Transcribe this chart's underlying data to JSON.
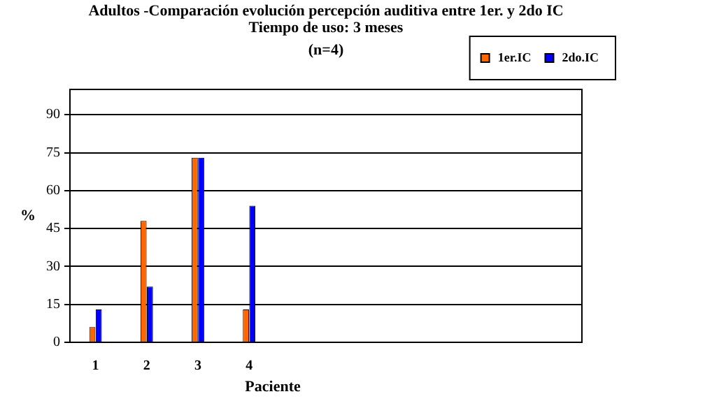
{
  "chart_data": {
    "type": "bar",
    "title": "Adultos -Comparación evolución percepción auditiva entre 1er. y 2do IC",
    "subtitle": "Tiempo de uso: 3 meses",
    "annotations": [
      "(n=4)"
    ],
    "xlabel": "Paciente",
    "ylabel": "%",
    "categories": [
      "1",
      "2",
      "3",
      "4",
      null,
      null,
      null,
      null,
      null,
      null
    ],
    "series": [
      {
        "name": "1er.IC",
        "color": "#ff6600",
        "values": [
          6,
          48,
          73,
          13,
          null,
          null,
          null,
          null,
          null,
          null
        ]
      },
      {
        "name": "2do.IC",
        "color": "#0000ff",
        "values": [
          13,
          22,
          73,
          54,
          null,
          null,
          null,
          null,
          null,
          null
        ]
      }
    ],
    "ylim": [
      0,
      100
    ],
    "yticks": [
      0,
      15,
      30,
      45,
      60,
      75,
      90
    ],
    "grid": "y",
    "legend": "top right"
  }
}
